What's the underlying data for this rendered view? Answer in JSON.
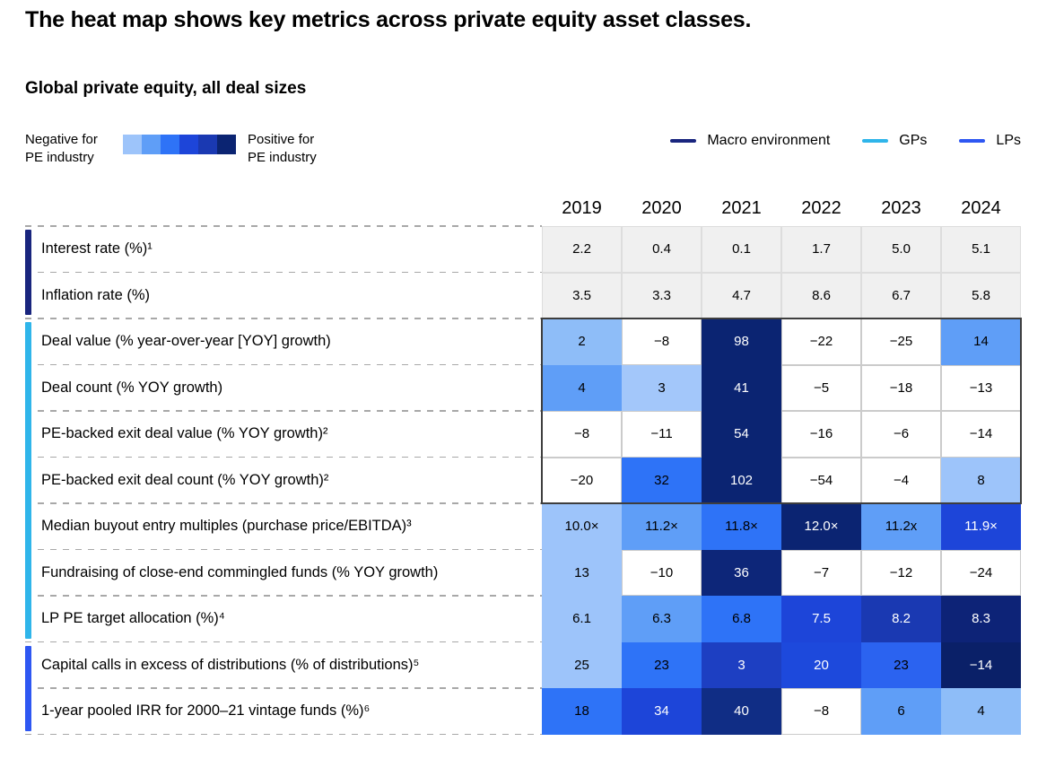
{
  "title": "The heat map shows key metrics across private equity asset classes.",
  "subtitle": "Global private equity, all deal sizes",
  "scale_legend": {
    "negative_label": "Negative for\nPE industry",
    "positive_label": "Positive for\nPE industry",
    "swatches": [
      "#9dc4fa",
      "#5f9ef7",
      "#2e73f7",
      "#1d45d9",
      "#1a39b2",
      "#0b2472"
    ]
  },
  "chart_data": {
    "type": "heatmap",
    "title": "The heat map shows key metrics across private equity asset classes.",
    "subtitle": "Global private equity, all deal sizes",
    "columns": [
      "2019",
      "2020",
      "2021",
      "2022",
      "2023",
      "2024"
    ],
    "legend_position": "top-right",
    "white_text_backgrounds": [
      "#0b2472",
      "#0d2679",
      "#0d2377",
      "#0a2068",
      "#102d85",
      "#1d45d9",
      "#1a39b2",
      "#1d3fc2",
      "#1d49dc"
    ],
    "groups": [
      {
        "name": "Macro environment",
        "color": "#19257e",
        "rows": [
          {
            "label": "Interest rate (%)¹",
            "values": [
              "2.2",
              "0.4",
              "0.1",
              "1.7",
              "5.0",
              "5.1"
            ],
            "colors": [
              "#f0f0f0",
              "#f0f0f0",
              "#f0f0f0",
              "#f0f0f0",
              "#f0f0f0",
              "#f0f0f0"
            ]
          },
          {
            "label": "Inflation rate (%)",
            "values": [
              "3.5",
              "3.3",
              "4.7",
              "8.6",
              "6.7",
              "5.8"
            ],
            "colors": [
              "#f0f0f0",
              "#f0f0f0",
              "#f0f0f0",
              "#f0f0f0",
              "#f0f0f0",
              "#f0f0f0"
            ]
          }
        ]
      },
      {
        "name": "GPs",
        "color": "#2fb5ea",
        "rows": [
          {
            "label": "Deal value (% year-over-year [YOY] growth)",
            "values": [
              "2",
              "−8",
              "98",
              "−22",
              "−25",
              "14"
            ],
            "colors": [
              "#8ebdf8",
              "#ffffff",
              "#0b2472",
              "#ffffff",
              "#ffffff",
              "#5f9ef7"
            ]
          },
          {
            "label": "Deal count (% YOY growth)",
            "values": [
              "4",
              "3",
              "41",
              "−5",
              "−18",
              "−13"
            ],
            "colors": [
              "#5f9ef7",
              "#a3c7fa",
              "#0b2472",
              "#ffffff",
              "#ffffff",
              "#ffffff"
            ]
          },
          {
            "label": "PE-backed exit deal value (% YOY growth)²",
            "values": [
              "−8",
              "−11",
              "54",
              "−16",
              "−6",
              "−14"
            ],
            "colors": [
              "#ffffff",
              "#ffffff",
              "#0b2472",
              "#ffffff",
              "#ffffff",
              "#ffffff"
            ]
          },
          {
            "label": "PE-backed exit deal count (% YOY growth)²",
            "values": [
              "−20",
              "32",
              "102",
              "−54",
              "−4",
              "8"
            ],
            "colors": [
              "#ffffff",
              "#2e73f7",
              "#0b2472",
              "#ffffff",
              "#ffffff",
              "#9dc4fa"
            ]
          },
          {
            "label": "Median buyout entry multiples (purchase price/EBITDA)³",
            "values": [
              "10.0×",
              "11.2×",
              "11.8×",
              "12.0×",
              "11.2x",
              "11.9×"
            ],
            "colors": [
              "#9dc4fa",
              "#5f9ef7",
              "#2e73f7",
              "#0b2472",
              "#5f9ef7",
              "#1d45d9"
            ]
          },
          {
            "label": "Fundraising of close-end commingled funds (% YOY growth)",
            "values": [
              "13",
              "−10",
              "36",
              "−7",
              "−12",
              "−24"
            ],
            "colors": [
              "#9dc4fa",
              "#ffffff",
              "#0d2679",
              "#ffffff",
              "#ffffff",
              "#ffffff"
            ]
          },
          {
            "label": "LP PE target allocation (%)⁴",
            "values": [
              "6.1",
              "6.3",
              "6.8",
              "7.5",
              "8.2",
              "8.3"
            ],
            "colors": [
              "#9dc4fa",
              "#5f9ef7",
              "#2e73f7",
              "#1d45d9",
              "#1a39b2",
              "#0d2377"
            ]
          }
        ]
      },
      {
        "name": "LPs",
        "color": "#2e57f2",
        "rows": [
          {
            "label": "Capital calls in excess of distributions (% of distributions)⁵",
            "values": [
              "25",
              "23",
              "3",
              "20",
              "23",
              "−14"
            ],
            "colors": [
              "#9dc4fa",
              "#2e73f7",
              "#1d3fc2",
              "#1d49dc",
              "#2b63f0",
              "#0a2068"
            ]
          },
          {
            "label": "1-year pooled IRR for 2000–21 vintage funds (%)⁶",
            "values": [
              "18",
              "34",
              "40",
              "−8",
              "6",
              "4"
            ],
            "colors": [
              "#2e73f7",
              "#1d45d9",
              "#102d85",
              "#ffffff",
              "#5f9ef7",
              "#8ebdf8"
            ]
          }
        ]
      }
    ]
  }
}
